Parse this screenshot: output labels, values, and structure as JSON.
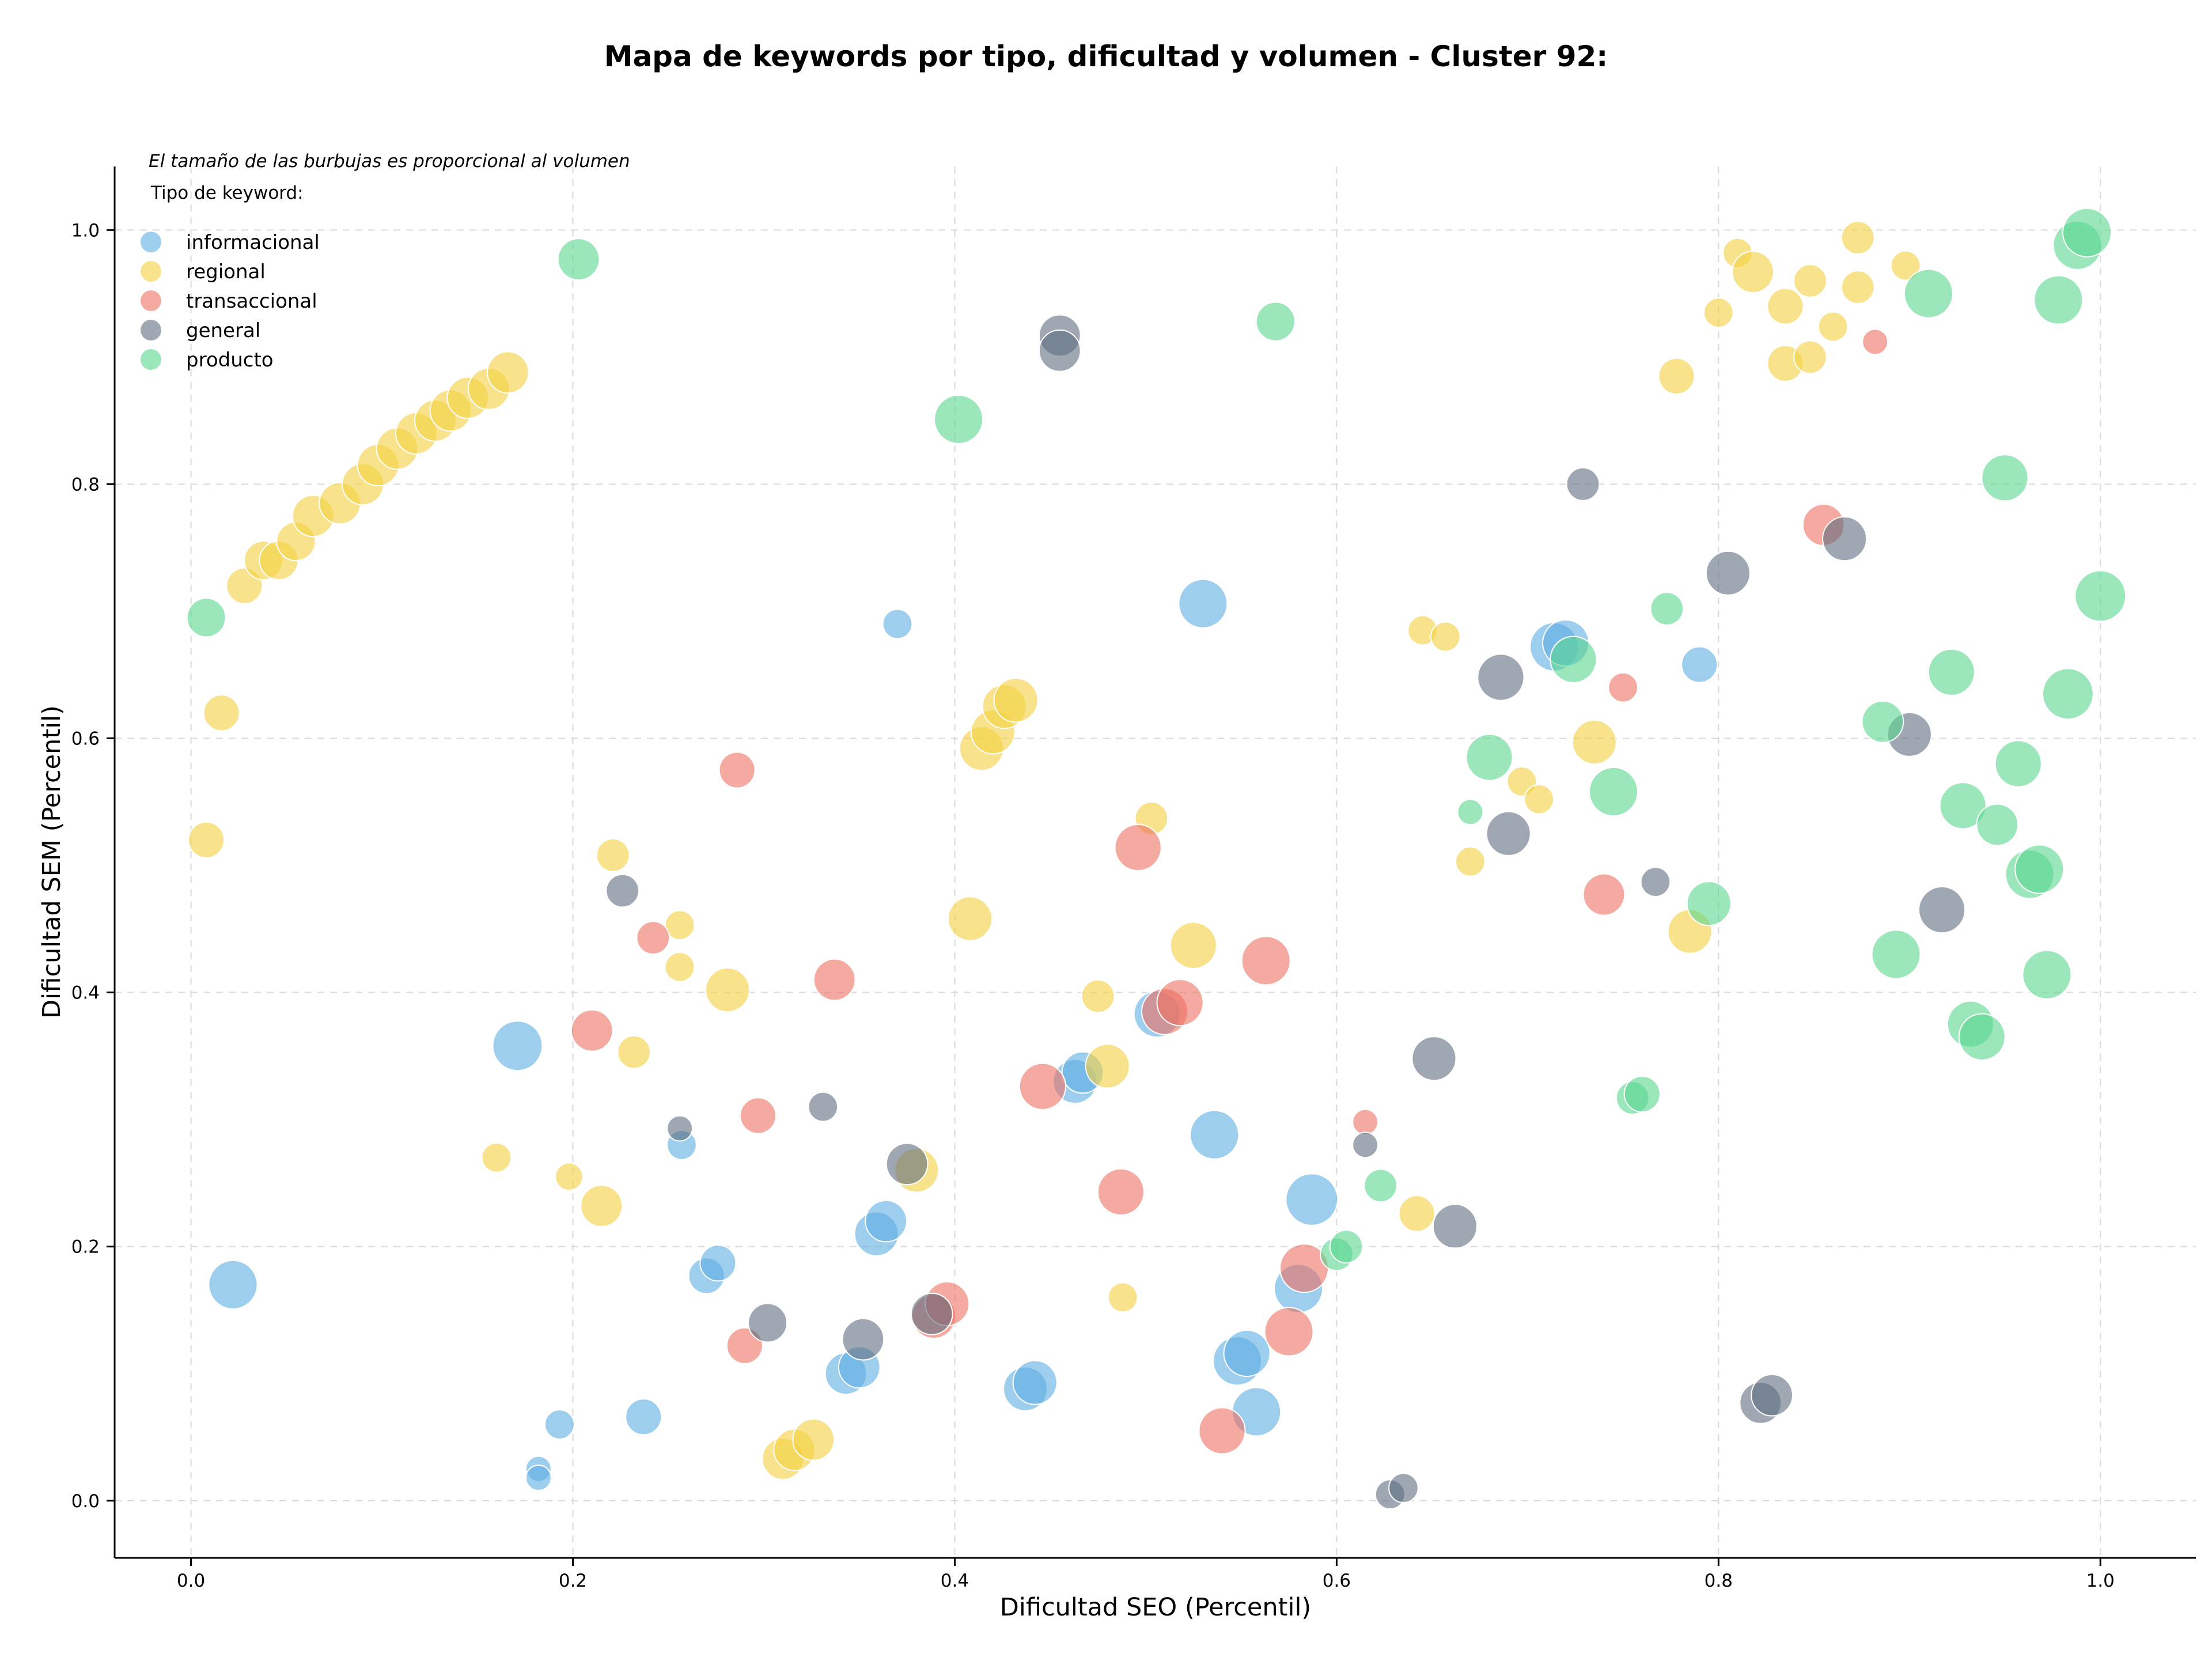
{
  "chart_data": {
    "type": "scatter",
    "title": "Mapa de keywords por tipo, dificultad y volumen - Cluster 92:",
    "xlabel": "Dificultad SEO (Percentil)",
    "ylabel": "Dificultad SEM (Percentil)",
    "xlim": [
      -0.04,
      1.05
    ],
    "ylim": [
      -0.045,
      1.05
    ],
    "xticks": [
      "0.0",
      "0.2",
      "0.4",
      "0.6",
      "0.8",
      "1.0"
    ],
    "yticks": [
      "0.0",
      "0.2",
      "0.4",
      "0.6",
      "0.8",
      "1.0"
    ],
    "grid": true,
    "note": "El tamaño de las burbujas es proporcional al volumen",
    "legend_title": "Tipo de keyword:",
    "legend_placement": "top-left",
    "series": [
      {
        "name": "informacional",
        "color": "#5dade2",
        "points": [
          [
            0.022,
            0.17,
            2.2
          ],
          [
            0.171,
            0.358,
            2.3
          ],
          [
            0.182,
            0.025,
            0.6
          ],
          [
            0.182,
            0.018,
            0.6
          ],
          [
            0.193,
            0.06,
            0.8
          ],
          [
            0.237,
            0.066,
            1.2
          ],
          [
            0.257,
            0.28,
            0.8
          ],
          [
            0.27,
            0.177,
            1.2
          ],
          [
            0.276,
            0.187,
            1.2
          ],
          [
            0.343,
            0.1,
            1.6
          ],
          [
            0.35,
            0.105,
            1.6
          ],
          [
            0.359,
            0.21,
            1.8
          ],
          [
            0.364,
            0.22,
            1.6
          ],
          [
            0.37,
            0.69,
            0.8
          ],
          [
            0.437,
            0.088,
            1.8
          ],
          [
            0.442,
            0.093,
            1.8
          ],
          [
            0.463,
            0.33,
            1.8
          ],
          [
            0.467,
            0.337,
            1.6
          ],
          [
            0.506,
            0.383,
            2.0
          ],
          [
            0.53,
            0.706,
            2.2
          ],
          [
            0.536,
            0.288,
            2.2
          ],
          [
            0.548,
            0.11,
            2.2
          ],
          [
            0.553,
            0.116,
            2.0
          ],
          [
            0.558,
            0.07,
            2.2
          ],
          [
            0.587,
            0.237,
            2.5
          ],
          [
            0.58,
            0.167,
            2.2
          ],
          [
            0.714,
            0.672,
            2.2
          ],
          [
            0.72,
            0.675,
            2.0
          ],
          [
            0.79,
            0.658,
            1.2
          ]
        ]
      },
      {
        "name": "regional",
        "color": "#f4d03f",
        "points": [
          [
            0.008,
            0.52,
            1.2
          ],
          [
            0.016,
            0.62,
            1.2
          ],
          [
            0.028,
            0.72,
            1.2
          ],
          [
            0.038,
            0.74,
            1.4
          ],
          [
            0.046,
            0.74,
            1.4
          ],
          [
            0.055,
            0.755,
            1.4
          ],
          [
            0.064,
            0.775,
            1.6
          ],
          [
            0.078,
            0.785,
            1.6
          ],
          [
            0.09,
            0.8,
            1.6
          ],
          [
            0.098,
            0.815,
            1.6
          ],
          [
            0.108,
            0.828,
            1.6
          ],
          [
            0.118,
            0.84,
            1.6
          ],
          [
            0.128,
            0.85,
            1.6
          ],
          [
            0.136,
            0.858,
            1.6
          ],
          [
            0.145,
            0.868,
            1.6
          ],
          [
            0.156,
            0.875,
            1.6
          ],
          [
            0.166,
            0.888,
            1.6
          ],
          [
            0.16,
            0.27,
            0.8
          ],
          [
            0.198,
            0.255,
            0.7
          ],
          [
            0.215,
            0.232,
            1.6
          ],
          [
            0.221,
            0.508,
            1.0
          ],
          [
            0.232,
            0.353,
            1.0
          ],
          [
            0.256,
            0.453,
            0.8
          ],
          [
            0.256,
            0.42,
            0.8
          ],
          [
            0.281,
            0.402,
            1.8
          ],
          [
            0.31,
            0.033,
            1.6
          ],
          [
            0.316,
            0.04,
            1.6
          ],
          [
            0.326,
            0.048,
            1.6
          ],
          [
            0.38,
            0.26,
            1.8
          ],
          [
            0.408,
            0.458,
            1.8
          ],
          [
            0.414,
            0.592,
            1.8
          ],
          [
            0.42,
            0.605,
            1.8
          ],
          [
            0.426,
            0.625,
            1.8
          ],
          [
            0.432,
            0.63,
            1.8
          ],
          [
            0.475,
            0.397,
            1.0
          ],
          [
            0.48,
            0.342,
            1.8
          ],
          [
            0.488,
            0.16,
            0.8
          ],
          [
            0.503,
            0.537,
            1.0
          ],
          [
            0.525,
            0.437,
            2.0
          ],
          [
            0.642,
            0.226,
            1.2
          ],
          [
            0.645,
            0.685,
            0.8
          ],
          [
            0.657,
            0.68,
            0.8
          ],
          [
            0.67,
            0.503,
            0.8
          ],
          [
            0.697,
            0.566,
            0.8
          ],
          [
            0.706,
            0.552,
            0.8
          ],
          [
            0.735,
            0.597,
            1.8
          ],
          [
            0.778,
            0.885,
            1.2
          ],
          [
            0.785,
            0.448,
            1.8
          ],
          [
            0.8,
            0.935,
            0.8
          ],
          [
            0.81,
            0.982,
            0.8
          ],
          [
            0.818,
            0.967,
            1.6
          ],
          [
            0.835,
            0.94,
            1.2
          ],
          [
            0.835,
            0.895,
            1.2
          ],
          [
            0.848,
            0.96,
            1.0
          ],
          [
            0.848,
            0.9,
            1.0
          ],
          [
            0.86,
            0.924,
            0.8
          ],
          [
            0.873,
            0.955,
            1.0
          ],
          [
            0.873,
            0.994,
            1.0
          ],
          [
            0.898,
            0.972,
            0.8
          ]
        ]
      },
      {
        "name": "transaccional",
        "color": "#ec7063",
        "points": [
          [
            0.21,
            0.37,
            1.6
          ],
          [
            0.242,
            0.443,
            1.0
          ],
          [
            0.29,
            0.122,
            1.2
          ],
          [
            0.297,
            0.303,
            1.2
          ],
          [
            0.286,
            0.575,
            1.2
          ],
          [
            0.337,
            0.41,
            1.6
          ],
          [
            0.389,
            0.145,
            1.8
          ],
          [
            0.396,
            0.155,
            1.8
          ],
          [
            0.446,
            0.326,
            2.0
          ],
          [
            0.487,
            0.243,
            2.0
          ],
          [
            0.496,
            0.514,
            2.0
          ],
          [
            0.51,
            0.385,
            2.0
          ],
          [
            0.518,
            0.392,
            2.0
          ],
          [
            0.54,
            0.055,
            2.0
          ],
          [
            0.563,
            0.425,
            2.2
          ],
          [
            0.575,
            0.133,
            2.2
          ],
          [
            0.583,
            0.183,
            2.2
          ],
          [
            0.615,
            0.298,
            0.6
          ],
          [
            0.74,
            0.477,
            1.6
          ],
          [
            0.75,
            0.64,
            0.8
          ],
          [
            0.855,
            0.768,
            1.6
          ],
          [
            0.882,
            0.912,
            0.6
          ]
        ]
      },
      {
        "name": "general",
        "color": "#5d6d7e",
        "points": [
          [
            0.226,
            0.48,
            1.0
          ],
          [
            0.256,
            0.293,
            0.6
          ],
          [
            0.302,
            0.14,
            1.4
          ],
          [
            0.331,
            0.31,
            0.8
          ],
          [
            0.352,
            0.127,
            1.6
          ],
          [
            0.375,
            0.265,
            1.6
          ],
          [
            0.388,
            0.147,
            1.6
          ],
          [
            0.455,
            0.917,
            1.6
          ],
          [
            0.455,
            0.905,
            1.6
          ],
          [
            0.615,
            0.28,
            0.6
          ],
          [
            0.628,
            0.005,
            0.8
          ],
          [
            0.635,
            0.01,
            0.8
          ],
          [
            0.651,
            0.348,
            1.8
          ],
          [
            0.662,
            0.216,
            1.8
          ],
          [
            0.686,
            0.648,
            2.0
          ],
          [
            0.69,
            0.525,
            1.8
          ],
          [
            0.729,
            0.8,
            1.0
          ],
          [
            0.767,
            0.487,
            0.8
          ],
          [
            0.805,
            0.73,
            1.8
          ],
          [
            0.822,
            0.077,
            1.6
          ],
          [
            0.828,
            0.083,
            1.6
          ],
          [
            0.866,
            0.757,
            1.8
          ],
          [
            0.9,
            0.603,
            1.8
          ],
          [
            0.917,
            0.465,
            2.0
          ]
        ]
      },
      {
        "name": "producto",
        "color": "#58d68d",
        "points": [
          [
            0.008,
            0.695,
            1.4
          ],
          [
            0.203,
            0.977,
            1.6
          ],
          [
            0.402,
            0.851,
            2.2
          ],
          [
            0.568,
            0.928,
            1.4
          ],
          [
            0.6,
            0.194,
            1.0
          ],
          [
            0.605,
            0.2,
            1.0
          ],
          [
            0.623,
            0.248,
            1.0
          ],
          [
            0.67,
            0.542,
            0.6
          ],
          [
            0.68,
            0.585,
            2.0
          ],
          [
            0.724,
            0.662,
            2.0
          ],
          [
            0.745,
            0.558,
            2.2
          ],
          [
            0.755,
            0.317,
            1.0
          ],
          [
            0.76,
            0.32,
            1.2
          ],
          [
            0.773,
            0.702,
            1.0
          ],
          [
            0.795,
            0.47,
            1.8
          ],
          [
            0.886,
            0.613,
            1.6
          ],
          [
            0.893,
            0.43,
            2.2
          ],
          [
            0.91,
            0.95,
            2.2
          ],
          [
            0.922,
            0.652,
            2.0
          ],
          [
            0.928,
            0.547,
            2.0
          ],
          [
            0.932,
            0.375,
            2.0
          ],
          [
            0.938,
            0.365,
            2.0
          ],
          [
            0.946,
            0.532,
            1.6
          ],
          [
            0.95,
            0.805,
            2.0
          ],
          [
            0.957,
            0.58,
            2.0
          ],
          [
            0.963,
            0.493,
            2.2
          ],
          [
            0.968,
            0.497,
            2.2
          ],
          [
            0.972,
            0.414,
            2.2
          ],
          [
            0.978,
            0.945,
            2.2
          ],
          [
            0.983,
            0.635,
            2.4
          ],
          [
            0.988,
            0.988,
            2.2
          ],
          [
            0.993,
            0.998,
            2.2
          ],
          [
            1.0,
            0.712,
            2.4
          ]
        ]
      }
    ]
  }
}
